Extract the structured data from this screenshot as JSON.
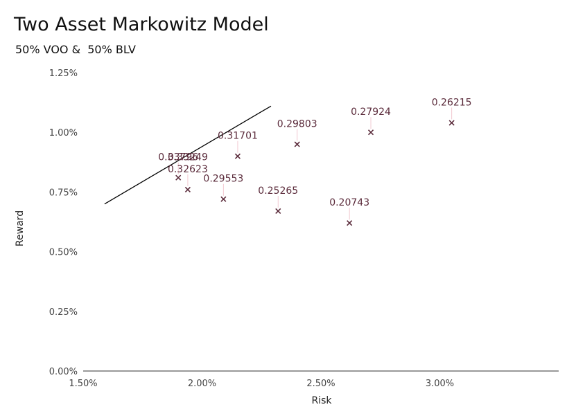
{
  "chart_data": {
    "type": "scatter",
    "title": "Two Asset Markowitz Model",
    "subtitle": "50% VOO &  50% BLV",
    "xlabel": "Risk",
    "ylabel": "Reward",
    "xlim": [
      1.5,
      3.5
    ],
    "ylim": [
      0.0,
      1.25
    ],
    "x_ticks": [
      1.5,
      2.0,
      2.5,
      3.0
    ],
    "x_tick_labels": [
      "1.50%",
      "2.00%",
      "2.50%",
      "3.00%"
    ],
    "y_ticks": [
      0.0,
      0.25,
      0.5,
      0.75,
      1.0,
      1.25
    ],
    "y_tick_labels": [
      "0.00%",
      "0.25%",
      "0.50%",
      "0.75%",
      "1.00%",
      "1.25%"
    ],
    "grid": false,
    "marker_color": "#5a2a3a",
    "line_color": "#000000",
    "points": [
      {
        "x": 1.9,
        "y": 0.81,
        "label": "0.33796"
      },
      {
        "x": 1.94,
        "y": 0.76,
        "label": "0.32623"
      },
      {
        "x": 2.09,
        "y": 0.72,
        "label": "0.29553"
      },
      {
        "x": 2.15,
        "y": 0.9,
        "label": "0.31701"
      },
      {
        "x": 2.32,
        "y": 0.67,
        "label": "0.25265"
      },
      {
        "x": 2.4,
        "y": 0.95,
        "label": "0.29803"
      },
      {
        "x": 2.62,
        "y": 0.62,
        "label": "0.20743"
      },
      {
        "x": 2.71,
        "y": 1.0,
        "label": "0.27924"
      },
      {
        "x": 3.05,
        "y": 1.04,
        "label": "0.26215"
      }
    ],
    "extra_labels": [
      {
        "x": 1.94,
        "y": 0.81,
        "label": "0.33249"
      }
    ],
    "line": {
      "x": [
        1.59,
        2.29
      ],
      "y": [
        0.7,
        1.11
      ]
    }
  }
}
